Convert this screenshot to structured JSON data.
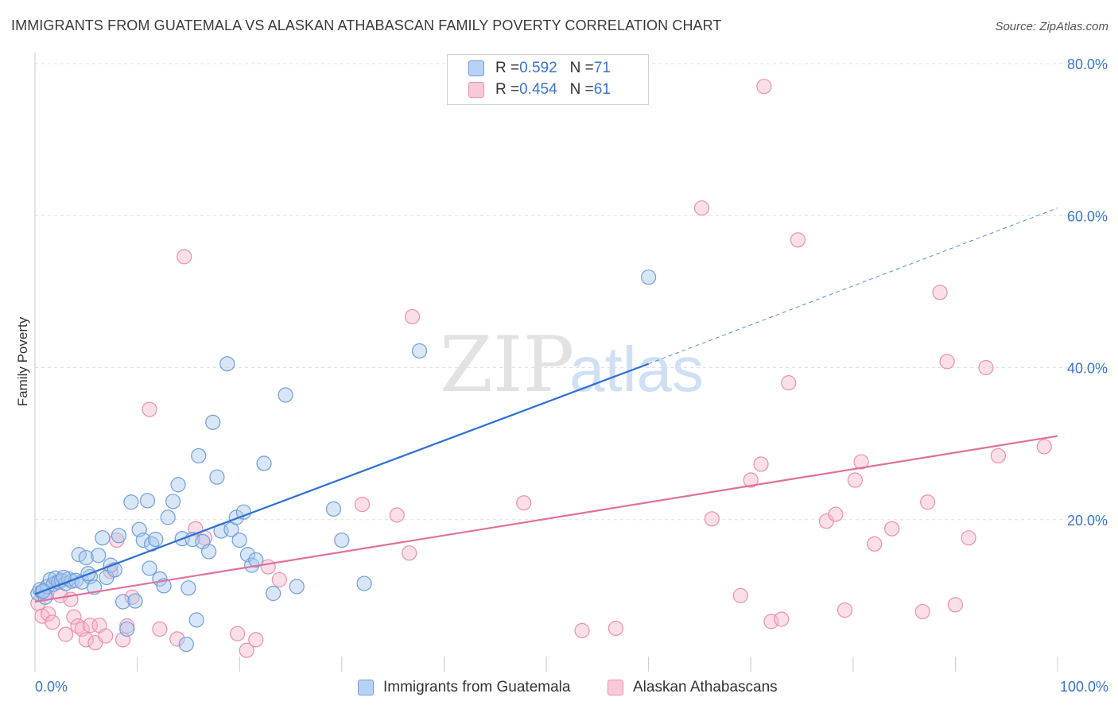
{
  "header": {
    "title": "IMMIGRANTS FROM GUATEMALA VS ALASKAN ATHABASCAN FAMILY POVERTY CORRELATION CHART",
    "source": "Source: ZipAtlas.com"
  },
  "watermark": {
    "zip": "ZIP",
    "atlas": "atlas"
  },
  "legend": {
    "r_label": "R = ",
    "n_label": "N = ",
    "rows": [
      {
        "r": "0.592",
        "n": "71"
      },
      {
        "r": "0.454",
        "n": "61"
      }
    ]
  },
  "colors": {
    "blue_fill": "#a8c8f0",
    "blue_stroke": "#6f9fd8",
    "blue_line": "#2e6fd1",
    "pink_fill": "#f6b8cb",
    "pink_stroke": "#ec8faf",
    "pink_line": "#e0709a",
    "tick_label": "#3b73c8",
    "grid": "#e0e0e0"
  },
  "chart_data": {
    "type": "scatter",
    "title": "IMMIGRANTS FROM GUATEMALA VS ALASKAN ATHABASCAN FAMILY POVERTY CORRELATION CHART",
    "xlabel": "",
    "ylabel": "Family Poverty",
    "xlim": [
      0,
      100
    ],
    "ylim": [
      0,
      80
    ],
    "x_tick_labels": [
      "0.0%",
      "100.0%"
    ],
    "y_ticks": [
      20,
      40,
      60,
      80
    ],
    "y_tick_labels": [
      "20.0%",
      "40.0%",
      "60.0%",
      "80.0%"
    ],
    "grid": true,
    "series": [
      {
        "name": "Immigrants from Guatemala",
        "r": 0.592,
        "n": 71,
        "trend": {
          "x0": 0,
          "y0": 10.2,
          "x1": 60,
          "y1": 40.5,
          "dash_to_x": 100,
          "dash_to_y": 61
        },
        "points": [
          [
            0.3,
            10.3
          ],
          [
            0.5,
            10.8
          ],
          [
            0.7,
            10.5
          ],
          [
            1.0,
            9.8
          ],
          [
            1.2,
            11.2
          ],
          [
            1.5,
            12.1
          ],
          [
            1.8,
            11.5
          ],
          [
            2.0,
            12.3
          ],
          [
            2.3,
            11.8
          ],
          [
            2.6,
            12.0
          ],
          [
            3.0,
            11.6
          ],
          [
            3.3,
            12.2
          ],
          [
            3.6,
            11.9
          ],
          [
            4.0,
            12.0
          ],
          [
            4.3,
            15.4
          ],
          [
            4.6,
            11.8
          ],
          [
            5.0,
            15.0
          ],
          [
            5.4,
            12.5
          ],
          [
            5.8,
            11.1
          ],
          [
            6.2,
            15.3
          ],
          [
            6.6,
            17.6
          ],
          [
            7.0,
            12.4
          ],
          [
            7.4,
            14.0
          ],
          [
            7.8,
            13.4
          ],
          [
            8.2,
            17.9
          ],
          [
            8.6,
            9.2
          ],
          [
            9.0,
            5.6
          ],
          [
            9.4,
            22.3
          ],
          [
            9.8,
            9.3
          ],
          [
            10.2,
            18.7
          ],
          [
            10.6,
            17.3
          ],
          [
            11.0,
            22.5
          ],
          [
            11.4,
            16.8
          ],
          [
            11.8,
            17.4
          ],
          [
            12.2,
            12.2
          ],
          [
            12.6,
            11.3
          ],
          [
            13.0,
            20.3
          ],
          [
            13.5,
            22.4
          ],
          [
            14.0,
            24.6
          ],
          [
            14.4,
            17.5
          ],
          [
            14.8,
            3.6
          ],
          [
            15.0,
            11.0
          ],
          [
            15.4,
            17.4
          ],
          [
            15.8,
            6.8
          ],
          [
            16.0,
            28.4
          ],
          [
            16.4,
            17.1
          ],
          [
            17.0,
            15.8
          ],
          [
            17.4,
            32.8
          ],
          [
            17.8,
            25.6
          ],
          [
            18.2,
            18.5
          ],
          [
            18.8,
            40.5
          ],
          [
            19.2,
            18.7
          ],
          [
            19.7,
            20.3
          ],
          [
            20.0,
            17.3
          ],
          [
            20.4,
            21.0
          ],
          [
            20.8,
            15.4
          ],
          [
            21.2,
            14.0
          ],
          [
            21.6,
            14.7
          ],
          [
            22.4,
            27.4
          ],
          [
            23.3,
            10.3
          ],
          [
            24.5,
            36.4
          ],
          [
            25.6,
            11.2
          ],
          [
            29.2,
            21.4
          ],
          [
            30.0,
            17.3
          ],
          [
            32.2,
            11.6
          ],
          [
            37.6,
            42.2
          ],
          [
            60.0,
            51.9
          ],
          [
            0.8,
            10.6
          ],
          [
            2.8,
            12.4
          ],
          [
            5.2,
            12.9
          ],
          [
            11.2,
            13.6
          ]
        ]
      },
      {
        "name": "Alaskan Athabascans",
        "r": 0.454,
        "n": 61,
        "trend": {
          "x0": 0,
          "y0": 9.2,
          "x1": 100,
          "y1": 31.0
        },
        "points": [
          [
            0.3,
            9.0
          ],
          [
            0.7,
            7.3
          ],
          [
            1.0,
            10.3
          ],
          [
            1.3,
            7.6
          ],
          [
            1.7,
            6.5
          ],
          [
            2.1,
            11.8
          ],
          [
            2.5,
            10.0
          ],
          [
            3.0,
            4.9
          ],
          [
            3.5,
            9.5
          ],
          [
            3.8,
            7.2
          ],
          [
            4.2,
            6.0
          ],
          [
            4.6,
            5.6
          ],
          [
            5.0,
            4.2
          ],
          [
            5.4,
            6.1
          ],
          [
            5.9,
            3.8
          ],
          [
            6.3,
            6.1
          ],
          [
            6.9,
            4.7
          ],
          [
            7.4,
            13.2
          ],
          [
            8.0,
            17.3
          ],
          [
            8.6,
            4.2
          ],
          [
            9.0,
            6.0
          ],
          [
            9.5,
            9.8
          ],
          [
            11.2,
            34.5
          ],
          [
            12.2,
            5.6
          ],
          [
            13.9,
            4.3
          ],
          [
            14.6,
            54.6
          ],
          [
            15.7,
            18.8
          ],
          [
            16.6,
            17.6
          ],
          [
            19.8,
            5.0
          ],
          [
            20.7,
            2.8
          ],
          [
            21.6,
            4.2
          ],
          [
            22.8,
            13.8
          ],
          [
            23.9,
            12.1
          ],
          [
            32.0,
            22.0
          ],
          [
            35.4,
            20.6
          ],
          [
            36.6,
            15.6
          ],
          [
            36.9,
            46.7
          ],
          [
            47.8,
            22.2
          ],
          [
            53.5,
            5.4
          ],
          [
            56.8,
            5.7
          ],
          [
            65.2,
            61.0
          ],
          [
            66.2,
            20.1
          ],
          [
            69.0,
            10.0
          ],
          [
            70.0,
            25.2
          ],
          [
            71.0,
            27.3
          ],
          [
            72.0,
            6.6
          ],
          [
            73.0,
            6.9
          ],
          [
            73.7,
            38.0
          ],
          [
            74.6,
            56.8
          ],
          [
            77.4,
            19.8
          ],
          [
            78.3,
            20.7
          ],
          [
            79.2,
            8.1
          ],
          [
            80.2,
            25.2
          ],
          [
            80.8,
            27.6
          ],
          [
            82.1,
            16.8
          ],
          [
            83.8,
            18.8
          ],
          [
            86.8,
            7.9
          ],
          [
            87.3,
            22.3
          ],
          [
            88.5,
            49.9
          ],
          [
            90.0,
            8.8
          ],
          [
            94.2,
            28.4
          ]
        ],
        "extra_points": [
          [
            89.2,
            40.8
          ],
          [
            91.3,
            17.6
          ],
          [
            93.0,
            40.0
          ],
          [
            98.7,
            29.6
          ],
          [
            71.3,
            77.0
          ]
        ]
      }
    ]
  },
  "bottom_legend": [
    {
      "label": "Immigrants from Guatemala"
    },
    {
      "label": "Alaskan Athabascans"
    }
  ]
}
